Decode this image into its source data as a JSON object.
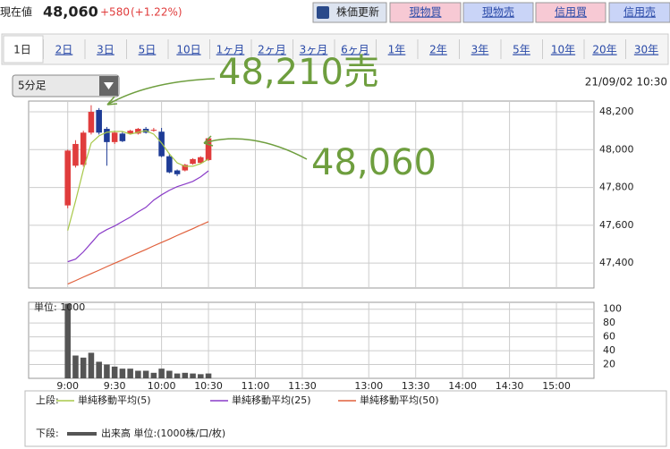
{
  "header": {
    "label": "現在値",
    "price": "48,060",
    "change": "+580",
    "change_pct": "(+1.22%)",
    "buttons": [
      "株価更新",
      "現物買",
      "現物売",
      "信用買",
      "信用売"
    ]
  },
  "tabs": [
    "1日",
    "2日",
    "3日",
    "5日",
    "10日",
    "1ヶ月",
    "2ヶ月",
    "3ヶ月",
    "6ヶ月",
    "1年",
    "2年",
    "3年",
    "5年",
    "10年",
    "20年",
    "30年"
  ],
  "interval": "5分足",
  "timestamp": "21/09/02 10:30",
  "annotations": [
    "48,210売",
    "48,060"
  ],
  "legend": {
    "upper_label": "上段:",
    "lower_label": "下段:"
  },
  "chart_data": [
    {
      "type": "candlestick",
      "x": [
        0,
        1,
        2,
        3,
        4,
        5,
        6,
        7,
        8,
        9,
        10,
        11,
        12,
        13,
        14,
        15,
        16,
        17,
        18
      ],
      "open": [
        47705,
        47915,
        47920,
        48090,
        48210,
        48110,
        48040,
        48085,
        48085,
        48085,
        48110,
        48100,
        48095,
        47965,
        47890,
        47890,
        47925,
        47930,
        47945
      ],
      "high": [
        48000,
        48050,
        48100,
        48235,
        48220,
        48120,
        48100,
        48095,
        48105,
        48115,
        48120,
        48115,
        48115,
        47980,
        47895,
        47925,
        47955,
        47965,
        48060
      ],
      "low": [
        47690,
        47905,
        47910,
        48080,
        48080,
        47915,
        48030,
        48040,
        48080,
        48080,
        48085,
        48095,
        47960,
        47875,
        47860,
        47885,
        47920,
        47925,
        47940
      ],
      "close": [
        47995,
        48030,
        48090,
        48200,
        48090,
        48040,
        48090,
        48045,
        48100,
        48110,
        48090,
        48105,
        47965,
        47880,
        47870,
        47920,
        47950,
        47960,
        48060
      ],
      "up_color": "#e03c3c",
      "down_color": "#1e3c96",
      "series": [
        {
          "name": "単純移動平均(5)",
          "color": "#a8c84a",
          "values": [
            47572,
            47728,
            47893,
            48035,
            48073,
            48092,
            48096,
            48096,
            48082,
            48092,
            48100,
            48082,
            48035,
            47978,
            47930,
            47912,
            47912,
            47926,
            47950
          ]
        },
        {
          "name": "単純移動平均(25)",
          "color": "#8a3cc8",
          "values": [
            47407,
            47421,
            47459,
            47506,
            47553,
            47577,
            47596,
            47620,
            47643,
            47671,
            47695,
            47733,
            47761,
            47785,
            47804,
            47818,
            47832,
            47856,
            47888
          ]
        },
        {
          "name": "単純移動平均(50)",
          "color": "#e0603c",
          "values": [
            47289,
            47307,
            47326,
            47344,
            47362,
            47381,
            47399,
            47417,
            47436,
            47454,
            47472,
            47491,
            47509,
            47527,
            47546,
            47564,
            47582,
            47601,
            47619
          ]
        }
      ],
      "xlim": [
        -5,
        67.3
      ],
      "ylim": [
        47268,
        48257
      ],
      "yticks": [
        {
          "value": 47400,
          "label": "47,400"
        },
        {
          "value": 47600,
          "label": "47,600"
        },
        {
          "value": 47800,
          "label": "47,800"
        },
        {
          "value": 48000,
          "label": "48,000"
        },
        {
          "value": 48200,
          "label": "48,200"
        }
      ],
      "grid": true
    },
    {
      "type": "bar",
      "unit_label": "単位: 1000",
      "x": [
        0,
        1,
        2,
        3,
        4,
        5,
        6,
        7,
        8,
        9,
        10,
        11,
        12,
        13,
        14,
        15,
        16,
        17,
        18
      ],
      "series": [
        {
          "name": "出来高 単位:(1000株/口/枚)",
          "color": "#555555",
          "values": [
            108,
            33,
            30,
            37,
            24,
            20,
            17,
            14,
            14,
            11,
            11,
            8,
            14,
            11,
            7,
            8,
            7,
            6,
            7
          ]
        }
      ],
      "xlim": [
        -5,
        67.3
      ],
      "ylim": [
        0,
        110
      ],
      "xticks": [
        {
          "value": 0,
          "label": "9:00"
        },
        {
          "value": 6,
          "label": "9:30"
        },
        {
          "value": 12,
          "label": "10:00"
        },
        {
          "value": 18,
          "label": "10:30"
        },
        {
          "value": 24,
          "label": "11:00"
        },
        {
          "value": 30,
          "label": "11:30"
        },
        {
          "value": 38.5,
          "label": "13:00"
        },
        {
          "value": 44.5,
          "label": "13:30"
        },
        {
          "value": 50.5,
          "label": "14:00"
        },
        {
          "value": 56.5,
          "label": "14:30"
        },
        {
          "value": 62.5,
          "label": "15:00"
        }
      ],
      "yticks": [
        20,
        40,
        60,
        80,
        100
      ],
      "grid": true
    }
  ]
}
